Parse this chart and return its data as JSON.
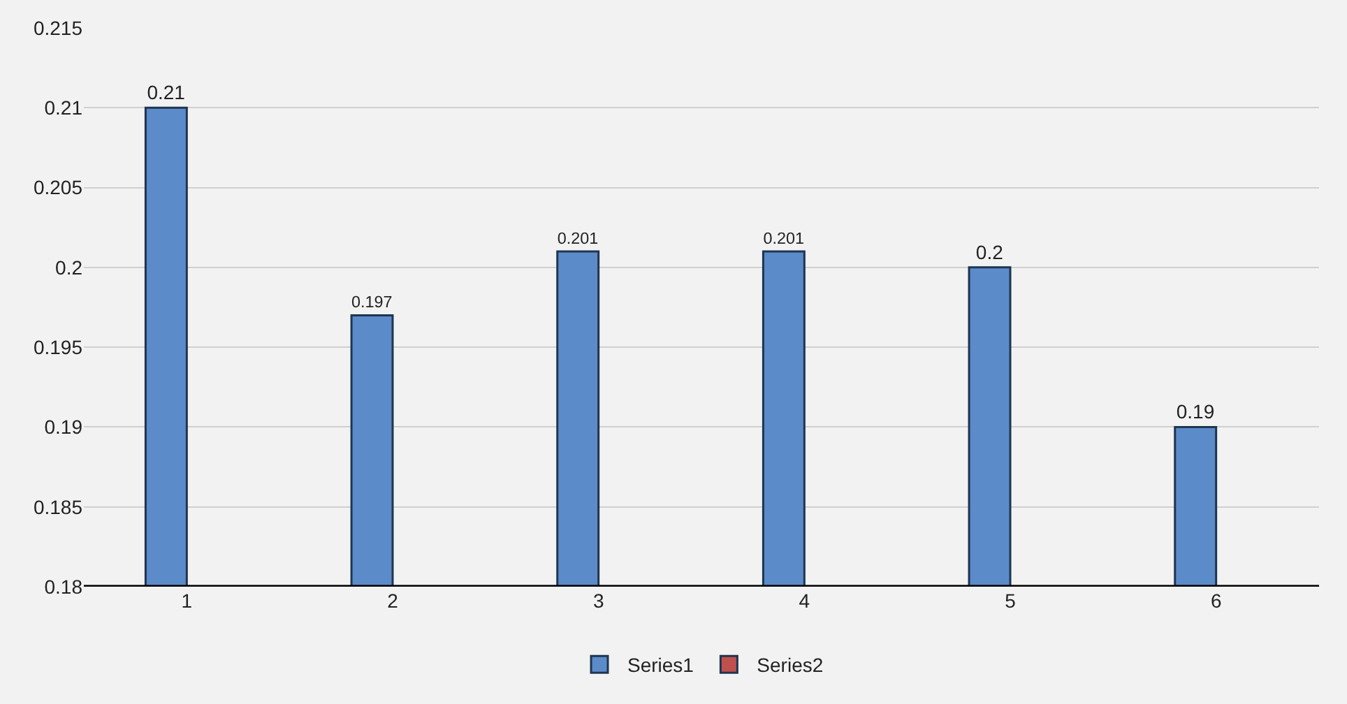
{
  "chart_data": {
    "type": "bar",
    "categories": [
      "1",
      "2",
      "3",
      "4",
      "5",
      "6"
    ],
    "series": [
      {
        "name": "Series1",
        "color": "#5b8bc9",
        "values": [
          0.21,
          0.197,
          0.201,
          0.201,
          0.2,
          0.19
        ]
      },
      {
        "name": "Series2",
        "color": "#c0504d",
        "values": [
          null,
          null,
          null,
          null,
          null,
          null
        ]
      }
    ],
    "ylim": [
      0.18,
      0.215
    ],
    "yticks": [
      0.18,
      0.185,
      0.19,
      0.195,
      0.2,
      0.205,
      0.21,
      0.215
    ],
    "grid": "y",
    "legend": "bottom",
    "data_labels": true
  }
}
